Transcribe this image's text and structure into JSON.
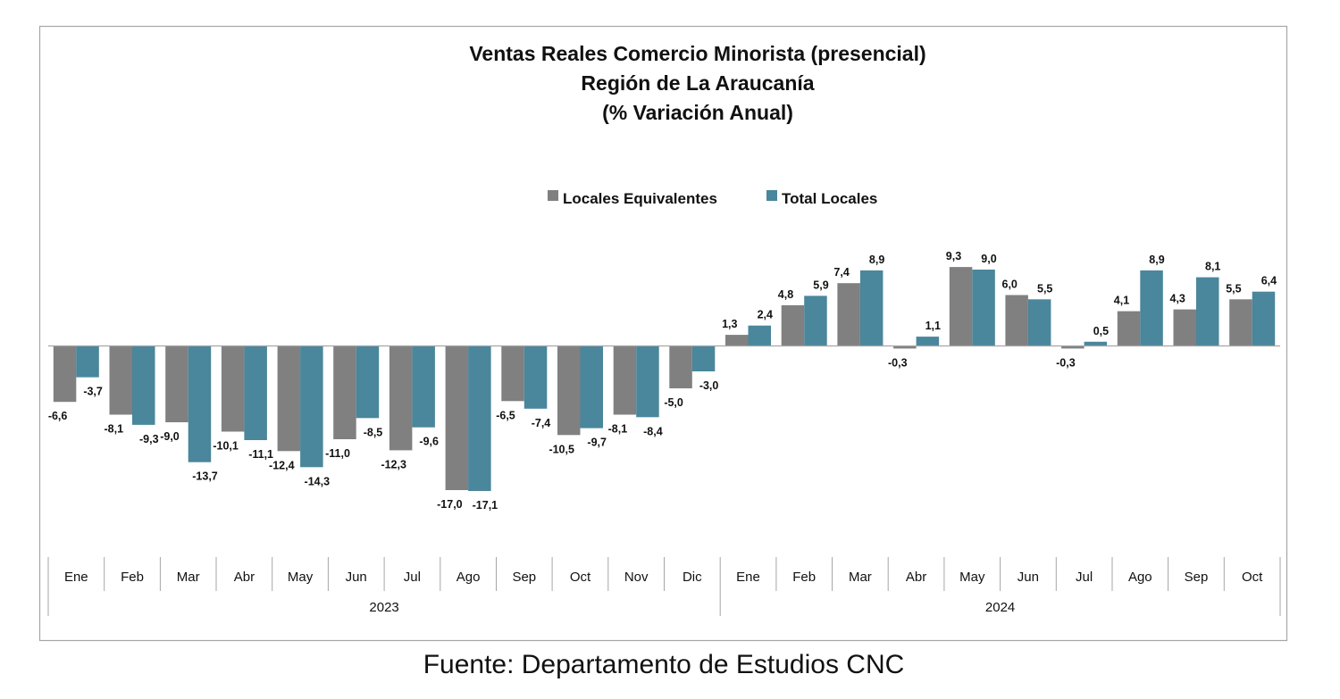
{
  "chart_data": {
    "type": "bar",
    "title": [
      "Ventas Reales Comercio Minorista (presencial)",
      "Región de La Araucanía",
      "(% Variación Anual)"
    ],
    "categories": [
      "Ene",
      "Feb",
      "Mar",
      "Abr",
      "May",
      "Jun",
      "Jul",
      "Ago",
      "Sep",
      "Oct",
      "Nov",
      "Dic",
      "Ene",
      "Feb",
      "Mar",
      "Abr",
      "May",
      "Jun",
      "Jul",
      "Ago",
      "Sep",
      "Oct"
    ],
    "groups": [
      {
        "label": "2023",
        "count": 12
      },
      {
        "label": "2024",
        "count": 10
      }
    ],
    "series": [
      {
        "name": "Locales Equivalentes",
        "color": "#808080",
        "values": [
          -6.6,
          -8.1,
          -9.0,
          -10.1,
          -12.4,
          -11.0,
          -12.3,
          -17.0,
          -6.5,
          -10.5,
          -8.1,
          -5.0,
          1.3,
          4.8,
          7.4,
          -0.3,
          9.3,
          6.0,
          -0.3,
          4.1,
          4.3,
          5.5
        ],
        "labels": [
          "-6,6",
          "-8,1",
          "-9,0",
          "-10,1",
          "-12,4",
          "-11,0",
          "-12,3",
          "-17,0",
          "-6,5",
          "-10,5",
          "-8,1",
          "-5,0",
          "1,3",
          "4,8",
          "7,4",
          "-0,3",
          "9,3",
          "6,0",
          "-0,3",
          "4,1",
          "4,3",
          "5,5"
        ]
      },
      {
        "name": "Total Locales",
        "color": "#4a869c",
        "values": [
          -3.7,
          -9.3,
          -13.7,
          -11.1,
          -14.3,
          -8.5,
          -9.6,
          -17.1,
          -7.4,
          -9.7,
          -8.4,
          -3.0,
          2.4,
          5.9,
          8.9,
          1.1,
          9.0,
          5.5,
          0.5,
          8.9,
          8.1,
          6.4
        ],
        "labels": [
          "-3,7",
          "-9,3",
          "-13,7",
          "-11,1",
          "-14,3",
          "-8,5",
          "-9,6",
          "-17,1",
          "-7,4",
          "-9,7",
          "-8,4",
          "-3,0",
          "2,4",
          "5,9",
          "8,9",
          "1,1",
          "9,0",
          "5,5",
          "0,5",
          "8,9",
          "8,1",
          "6,4"
        ]
      }
    ],
    "legend_position": "top-center",
    "grid": false,
    "source": "Fuente: Departamento de Estudios CNC"
  }
}
